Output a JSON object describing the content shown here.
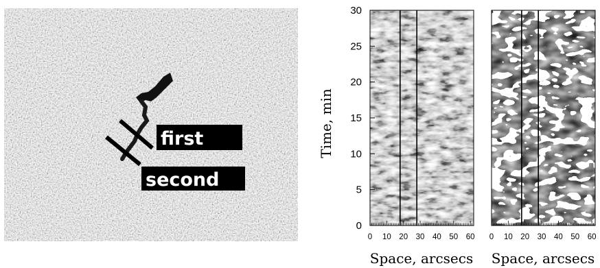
{
  "left_image": {
    "icon": "solar-magnetogram-image",
    "slit_labels": [
      "first",
      "second"
    ]
  },
  "chart_data": [
    {
      "type": "heatmap",
      "panel": "time-space diagram (intensity)",
      "xlabel": "Space, arcsecs",
      "ylabel": "Time, min",
      "xlim": [
        0,
        62
      ],
      "ylim": [
        0,
        30
      ],
      "xticks": [
        0,
        10,
        20,
        30,
        40,
        50,
        60
      ],
      "yticks": [
        0,
        5,
        10,
        15,
        20,
        25,
        30
      ],
      "vertical_markers_x": [
        18,
        28
      ]
    },
    {
      "type": "heatmap",
      "panel": "time-space diagram (filtered)",
      "xlabel": "Space, arcsecs",
      "ylabel": "",
      "xlim": [
        0,
        62
      ],
      "ylim": [
        0,
        30
      ],
      "xticks": [
        0,
        10,
        20,
        30,
        40,
        50,
        60
      ],
      "yticks": [],
      "vertical_markers_x": [
        18,
        28
      ]
    }
  ],
  "colors": {
    "background": "#ffffff",
    "label_box": "#000000",
    "label_text": "#ffffff"
  }
}
